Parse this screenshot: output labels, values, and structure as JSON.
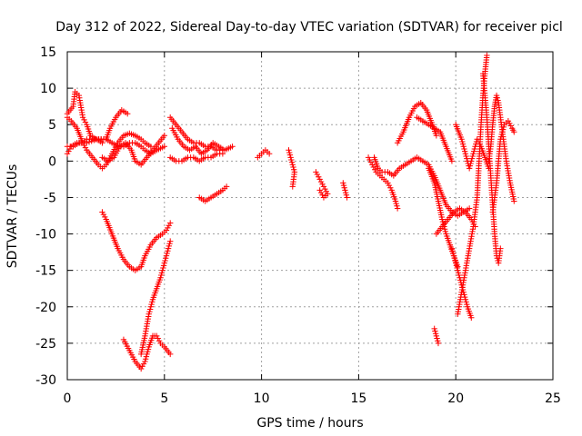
{
  "chart_data": {
    "type": "scatter",
    "title": "Day 312 of 2022, Sidereal Day-to-day VTEC variation (SDTVAR) for receiver picl",
    "xlabel": "GPS time / hours",
    "ylabel": "SDTVAR / TECUs",
    "xlim": [
      0,
      25
    ],
    "ylim": [
      -30,
      15
    ],
    "xticks": [
      0,
      5,
      10,
      15,
      20,
      25
    ],
    "yticks": [
      -30,
      -25,
      -20,
      -15,
      -10,
      -5,
      0,
      5,
      10,
      15
    ],
    "grid": true,
    "marker": "plus",
    "color": "#ff0000",
    "series": [
      {
        "name": "s1",
        "points": [
          [
            0,
            6.5
          ],
          [
            0.3,
            7.5
          ],
          [
            0.4,
            9.5
          ],
          [
            0.6,
            9.0
          ],
          [
            0.8,
            6.0
          ],
          [
            1.0,
            5.0
          ],
          [
            1.2,
            3.5
          ],
          [
            1.5,
            3.0
          ],
          [
            1.8,
            2.5
          ]
        ]
      },
      {
        "name": "s2",
        "points": [
          [
            0,
            6.0
          ],
          [
            0.2,
            5.5
          ],
          [
            0.5,
            4.5
          ],
          [
            0.8,
            2.5
          ],
          [
            1.0,
            1.5
          ],
          [
            1.3,
            0.5
          ],
          [
            1.6,
            -0.5
          ],
          [
            1.8,
            -1.0
          ],
          [
            2.0,
            -0.5
          ],
          [
            2.3,
            1.0
          ],
          [
            2.6,
            2.5
          ],
          [
            2.9,
            3.5
          ],
          [
            3.2,
            3.8
          ],
          [
            3.5,
            3.5
          ],
          [
            3.8,
            3.0
          ],
          [
            4.0,
            2.5
          ],
          [
            4.3,
            2.0
          ]
        ]
      },
      {
        "name": "s3",
        "points": [
          [
            0,
            1.0
          ],
          [
            0.2,
            2.0
          ],
          [
            0.5,
            2.5
          ],
          [
            0.8,
            2.5
          ],
          [
            1.0,
            3.0
          ],
          [
            1.3,
            3.0
          ],
          [
            1.6,
            3.0
          ],
          [
            2.0,
            3.0
          ],
          [
            2.3,
            2.5
          ],
          [
            2.6,
            2.0
          ],
          [
            2.9,
            2.0
          ],
          [
            3.2,
            2.5
          ],
          [
            3.5,
            2.5
          ],
          [
            3.8,
            2.0
          ],
          [
            4.0,
            1.5
          ],
          [
            4.3,
            1.0
          ],
          [
            4.6,
            1.5
          ],
          [
            5.0,
            2.0
          ]
        ]
      },
      {
        "name": "s4",
        "points": [
          [
            0,
            2.0
          ],
          [
            0.3,
            2.0
          ],
          [
            0.6,
            2.5
          ],
          [
            1.0,
            2.5
          ],
          [
            1.5,
            3.0
          ],
          [
            2.0,
            3.0
          ],
          [
            2.2,
            4.5
          ],
          [
            2.5,
            6.0
          ],
          [
            2.8,
            7.0
          ],
          [
            3.1,
            6.5
          ]
        ]
      },
      {
        "name": "s5",
        "points": [
          [
            1.8,
            0.5
          ],
          [
            2.1,
            0.0
          ],
          [
            2.4,
            0.5
          ],
          [
            2.7,
            2.0
          ],
          [
            3.0,
            2.5
          ],
          [
            3.3,
            1.5
          ],
          [
            3.5,
            0.0
          ],
          [
            3.8,
            -0.5
          ],
          [
            4.1,
            0.5
          ],
          [
            4.4,
            1.5
          ],
          [
            4.7,
            2.5
          ],
          [
            5.0,
            3.5
          ]
        ]
      },
      {
        "name": "s6",
        "points": [
          [
            1.8,
            -7.0
          ],
          [
            2.0,
            -8.0
          ],
          [
            2.3,
            -10.0
          ],
          [
            2.6,
            -12.0
          ],
          [
            2.9,
            -13.5
          ],
          [
            3.2,
            -14.5
          ],
          [
            3.5,
            -15.0
          ],
          [
            3.8,
            -14.5
          ],
          [
            4.0,
            -13.0
          ],
          [
            4.3,
            -11.5
          ],
          [
            4.6,
            -10.5
          ],
          [
            4.9,
            -10.0
          ],
          [
            5.1,
            -9.5
          ],
          [
            5.3,
            -8.5
          ]
        ]
      },
      {
        "name": "s7",
        "points": [
          [
            2.9,
            -24.5
          ],
          [
            3.2,
            -26.0
          ],
          [
            3.5,
            -27.5
          ],
          [
            3.8,
            -28.5
          ],
          [
            4.0,
            -27.5
          ],
          [
            4.2,
            -25.5
          ],
          [
            4.4,
            -24.0
          ],
          [
            4.6,
            -24.0
          ],
          [
            4.8,
            -25.0
          ],
          [
            5.0,
            -25.5
          ],
          [
            5.3,
            -26.5
          ]
        ]
      },
      {
        "name": "s8",
        "points": [
          [
            3.8,
            -26.5
          ],
          [
            4.0,
            -24.0
          ],
          [
            4.2,
            -21.0
          ],
          [
            4.4,
            -19.0
          ],
          [
            4.6,
            -17.5
          ],
          [
            4.8,
            -16.0
          ],
          [
            5.0,
            -14.0
          ],
          [
            5.2,
            -12.0
          ],
          [
            5.3,
            -11.0
          ]
        ]
      },
      {
        "name": "s9",
        "points": [
          [
            5.3,
            6.0
          ],
          [
            5.6,
            5.0
          ],
          [
            5.9,
            4.0
          ],
          [
            6.2,
            3.0
          ],
          [
            6.5,
            2.5
          ],
          [
            6.8,
            2.5
          ],
          [
            7.1,
            2.0
          ],
          [
            7.4,
            2.0
          ],
          [
            7.7,
            1.5
          ],
          [
            8.0,
            1.5
          ]
        ]
      },
      {
        "name": "s10",
        "points": [
          [
            5.4,
            4.5
          ],
          [
            5.7,
            3.0
          ],
          [
            6.0,
            2.0
          ],
          [
            6.3,
            1.5
          ],
          [
            6.6,
            2.0
          ],
          [
            6.9,
            1.0
          ],
          [
            7.2,
            1.5
          ],
          [
            7.5,
            2.5
          ],
          [
            7.8,
            2.0
          ],
          [
            8.1,
            1.5
          ],
          [
            8.5,
            2.0
          ]
        ]
      },
      {
        "name": "s11",
        "points": [
          [
            5.3,
            0.5
          ],
          [
            5.6,
            0.0
          ],
          [
            5.9,
            0.0
          ],
          [
            6.2,
            0.5
          ],
          [
            6.5,
            0.5
          ],
          [
            6.8,
            0.0
          ],
          [
            7.1,
            0.5
          ],
          [
            7.4,
            0.5
          ],
          [
            7.7,
            1.0
          ],
          [
            8.0,
            1.0
          ]
        ]
      },
      {
        "name": "s12",
        "points": [
          [
            6.8,
            -5.0
          ],
          [
            7.1,
            -5.5
          ],
          [
            7.4,
            -5.0
          ],
          [
            7.7,
            -4.5
          ],
          [
            8.0,
            -4.0
          ],
          [
            8.2,
            -3.5
          ]
        ]
      },
      {
        "name": "s13",
        "points": [
          [
            9.8,
            0.5
          ],
          [
            10.0,
            1.0
          ],
          [
            10.2,
            1.5
          ],
          [
            10.4,
            1.0
          ]
        ]
      },
      {
        "name": "s14",
        "points": [
          [
            11.4,
            1.5
          ],
          [
            11.5,
            0.5
          ],
          [
            11.6,
            -0.5
          ],
          [
            11.7,
            -1.5
          ],
          [
            11.6,
            -3.5
          ]
        ]
      },
      {
        "name": "s15",
        "points": [
          [
            12.8,
            -1.5
          ],
          [
            13.0,
            -2.5
          ],
          [
            13.2,
            -3.5
          ],
          [
            13.4,
            -4.5
          ],
          [
            13.2,
            -5.0
          ],
          [
            13.0,
            -4.0
          ]
        ]
      },
      {
        "name": "s16",
        "points": [
          [
            14.2,
            -3.0
          ],
          [
            14.3,
            -4.0
          ],
          [
            14.4,
            -5.0
          ]
        ]
      },
      {
        "name": "s17",
        "points": [
          [
            15.5,
            0.5
          ],
          [
            15.7,
            -0.5
          ],
          [
            15.9,
            -1.5
          ],
          [
            16.1,
            -2.0
          ],
          [
            16.3,
            -2.5
          ],
          [
            16.5,
            -3.0
          ],
          [
            16.7,
            -4.0
          ],
          [
            16.9,
            -5.5
          ],
          [
            17.0,
            -6.5
          ]
        ]
      },
      {
        "name": "s18",
        "points": [
          [
            15.8,
            0.5
          ],
          [
            16.0,
            -1.0
          ],
          [
            16.2,
            -1.5
          ],
          [
            16.5,
            -1.5
          ],
          [
            16.8,
            -2.0
          ],
          [
            17.1,
            -1.0
          ],
          [
            17.4,
            -0.5
          ],
          [
            17.7,
            0.0
          ],
          [
            18.0,
            0.5
          ],
          [
            18.3,
            0.0
          ],
          [
            18.6,
            -0.5
          ],
          [
            18.9,
            -2.0
          ],
          [
            19.2,
            -4.0
          ],
          [
            19.5,
            -6.0
          ],
          [
            19.8,
            -7.0
          ],
          [
            20.1,
            -7.5
          ],
          [
            20.4,
            -7.0
          ],
          [
            20.7,
            -6.5
          ]
        ]
      },
      {
        "name": "s19",
        "points": [
          [
            17.0,
            2.5
          ],
          [
            17.3,
            4.0
          ],
          [
            17.6,
            6.0
          ],
          [
            17.9,
            7.5
          ],
          [
            18.2,
            8.0
          ],
          [
            18.5,
            7.0
          ],
          [
            18.8,
            5.0
          ],
          [
            19.0,
            3.5
          ]
        ]
      },
      {
        "name": "s20",
        "points": [
          [
            18.0,
            6.0
          ],
          [
            18.3,
            5.5
          ],
          [
            18.6,
            5.0
          ],
          [
            18.9,
            4.5
          ],
          [
            19.2,
            4.0
          ],
          [
            19.5,
            2.0
          ],
          [
            19.8,
            0.0
          ]
        ]
      },
      {
        "name": "s21",
        "points": [
          [
            18.6,
            -1.0
          ],
          [
            18.9,
            -3.0
          ],
          [
            19.1,
            -5.5
          ],
          [
            19.3,
            -8.0
          ],
          [
            19.5,
            -10.0
          ],
          [
            19.7,
            -11.5
          ],
          [
            19.9,
            -13.0
          ],
          [
            20.1,
            -14.5
          ]
        ]
      },
      {
        "name": "s22",
        "points": [
          [
            18.9,
            -23.0
          ],
          [
            19.0,
            -24.0
          ],
          [
            19.1,
            -25.0
          ]
        ]
      },
      {
        "name": "s23",
        "points": [
          [
            19.0,
            -10.0
          ],
          [
            19.3,
            -9.0
          ],
          [
            19.6,
            -8.0
          ],
          [
            19.9,
            -7.0
          ],
          [
            20.2,
            -6.5
          ],
          [
            20.5,
            -7.0
          ],
          [
            20.8,
            -8.0
          ],
          [
            21.0,
            -9.0
          ]
        ]
      },
      {
        "name": "s24",
        "points": [
          [
            19.8,
            -12.0
          ],
          [
            20.0,
            -14.0
          ],
          [
            20.2,
            -16.0
          ],
          [
            20.4,
            -18.0
          ],
          [
            20.6,
            -20.0
          ],
          [
            20.8,
            -21.5
          ]
        ]
      },
      {
        "name": "s25",
        "points": [
          [
            20.1,
            -21.0
          ],
          [
            20.3,
            -18.0
          ],
          [
            20.5,
            -15.0
          ],
          [
            20.7,
            -12.0
          ],
          [
            20.9,
            -9.0
          ],
          [
            21.1,
            -5.0
          ],
          [
            21.2,
            0.0
          ],
          [
            21.3,
            5.0
          ],
          [
            21.4,
            9.0
          ],
          [
            21.5,
            12.0
          ],
          [
            21.6,
            14.5
          ]
        ]
      },
      {
        "name": "s26",
        "points": [
          [
            20.0,
            5.0
          ],
          [
            20.3,
            3.0
          ],
          [
            20.5,
            1.0
          ],
          [
            20.7,
            -1.0
          ],
          [
            20.9,
            1.0
          ],
          [
            21.1,
            3.0
          ],
          [
            21.3,
            2.0
          ],
          [
            21.5,
            0.5
          ],
          [
            21.7,
            -1.0
          ]
        ]
      },
      {
        "name": "s27",
        "points": [
          [
            21.4,
            12.0
          ],
          [
            21.5,
            9.0
          ],
          [
            21.6,
            6.0
          ],
          [
            21.7,
            2.0
          ],
          [
            21.8,
            -2.0
          ],
          [
            21.9,
            -6.0
          ],
          [
            22.0,
            -10.0
          ],
          [
            22.1,
            -13.0
          ],
          [
            22.2,
            -14.0
          ],
          [
            22.3,
            -12.0
          ]
        ]
      },
      {
        "name": "s28",
        "points": [
          [
            21.7,
            0.0
          ],
          [
            21.8,
            2.0
          ],
          [
            21.9,
            5.0
          ],
          [
            22.0,
            7.5
          ],
          [
            22.1,
            9.0
          ],
          [
            22.2,
            8.0
          ],
          [
            22.3,
            6.0
          ],
          [
            22.4,
            4.0
          ],
          [
            22.5,
            2.0
          ],
          [
            22.6,
            0.0
          ],
          [
            22.8,
            -3.0
          ],
          [
            23.0,
            -5.5
          ]
        ]
      },
      {
        "name": "s29",
        "points": [
          [
            21.9,
            -7.0
          ],
          [
            22.0,
            -5.0
          ],
          [
            22.1,
            -3.0
          ],
          [
            22.2,
            0.0
          ],
          [
            22.3,
            3.0
          ],
          [
            22.5,
            5.0
          ],
          [
            22.7,
            5.5
          ],
          [
            22.9,
            4.5
          ],
          [
            23.0,
            4.0
          ]
        ]
      }
    ]
  }
}
